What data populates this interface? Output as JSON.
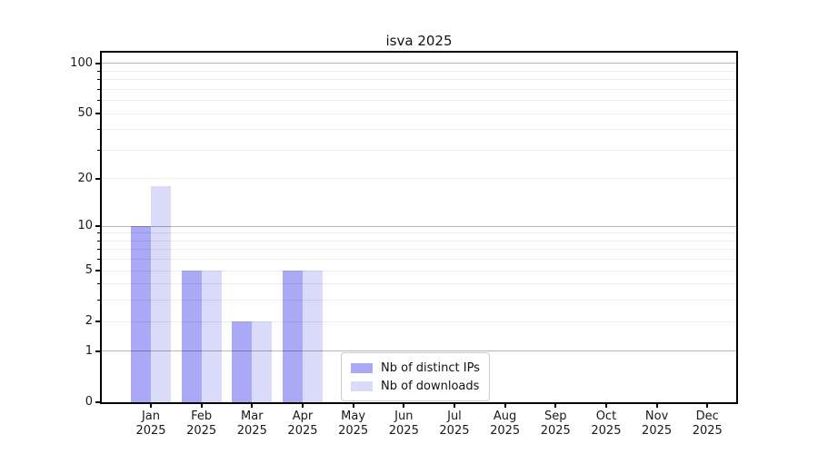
{
  "title": "isva 2025",
  "legend": {
    "items": [
      {
        "label": "Nb of distinct IPs",
        "color": "#a9a9f6"
      },
      {
        "label": "Nb of downloads",
        "color": "#dadaf9"
      }
    ]
  },
  "colors": {
    "background": "#ffffff",
    "axis": "#000000",
    "text": "#1a1a1a",
    "grid_minor": "rgba(0,0,0,0.075)",
    "grid_major": "rgba(0,0,0,0.29)"
  },
  "chart_data": {
    "type": "bar",
    "title": "isva 2025",
    "categories": [
      "Jan 2025",
      "Feb 2025",
      "Mar 2025",
      "Apr 2025",
      "May 2025",
      "Jun 2025",
      "Jul 2025",
      "Aug 2025",
      "Sep 2025",
      "Oct 2025",
      "Nov 2025",
      "Dec 2025"
    ],
    "series": [
      {
        "name": "Nb of distinct IPs",
        "color": "#a9a9f6",
        "values": [
          10,
          5,
          2,
          5,
          0,
          0,
          0,
          0,
          0,
          0,
          0,
          0
        ]
      },
      {
        "name": "Nb of downloads",
        "color": "#dadaf9",
        "values": [
          18,
          5,
          2,
          5,
          0,
          0,
          0,
          0,
          0,
          0,
          0,
          0
        ]
      }
    ],
    "xlabel": "",
    "ylabel": "",
    "yscale": "log1p",
    "ylim": [
      0,
      117
    ],
    "yticks": [
      0,
      1,
      2,
      5,
      10,
      20,
      50,
      100
    ],
    "gridlines_major": [
      1,
      10,
      100
    ],
    "gridlines_minor": [
      2,
      3,
      4,
      5,
      6,
      7,
      8,
      9,
      20,
      30,
      40,
      50,
      60,
      70,
      80,
      90
    ],
    "grid": true,
    "legend_position": "lower-center-inside"
  }
}
